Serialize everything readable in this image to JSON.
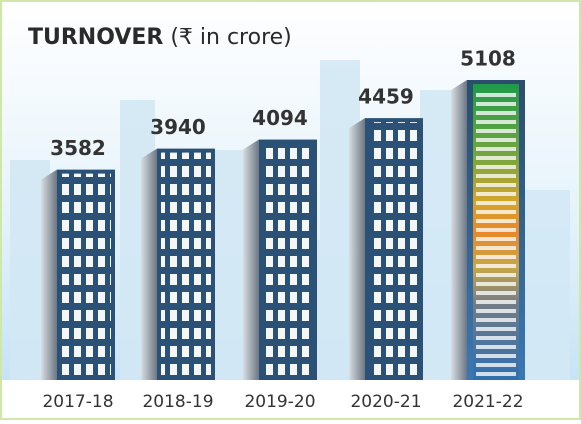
{
  "chart_data": {
    "type": "bar",
    "title": "TURNOVER",
    "subtitle": "(₹ in crore)",
    "categories": [
      "2017-18",
      "2018-19",
      "2019-20",
      "2020-21",
      "2021-22"
    ],
    "values": [
      3582,
      3940,
      4094,
      4459,
      5108
    ],
    "color": "#2b5276"
  }
}
